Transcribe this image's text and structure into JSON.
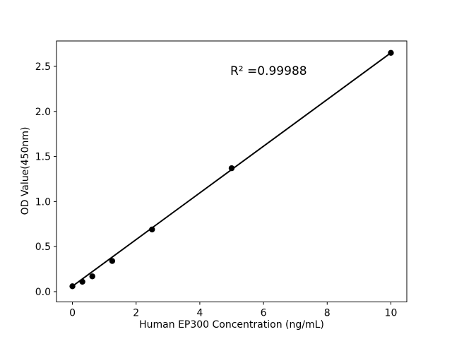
{
  "chart_data": {
    "type": "scatter",
    "title": "",
    "xlabel": "Human EP300 Concentration (ng/mL)",
    "ylabel": "OD Value(450nm)",
    "annotation": "R² =0.99988",
    "x": [
      0,
      0.3125,
      0.625,
      1.25,
      2.5,
      5,
      10
    ],
    "y": [
      0.06,
      0.11,
      0.17,
      0.34,
      0.69,
      1.37,
      2.65
    ],
    "fit_line": {
      "x1": 0,
      "y1": 0.06,
      "x2": 10,
      "y2": 2.65
    },
    "xlim": [
      -0.5,
      10.5
    ],
    "ylim": [
      -0.114,
      2.782
    ],
    "xticks": {
      "values": [
        0,
        2,
        4,
        6,
        8,
        10
      ],
      "labels": [
        "0",
        "2",
        "4",
        "6",
        "8",
        "10"
      ]
    },
    "yticks": {
      "values": [
        0,
        0.5,
        1.0,
        1.5,
        2.0,
        2.5
      ],
      "labels": [
        "0.0",
        "0.5",
        "1.0",
        "1.5",
        "2.0",
        "2.5"
      ]
    },
    "grid": false,
    "legend": "none",
    "colors": {
      "background": "#ffffff",
      "axis": "#000000",
      "text": "#000000",
      "marker": "#000000",
      "line": "#000000"
    }
  }
}
